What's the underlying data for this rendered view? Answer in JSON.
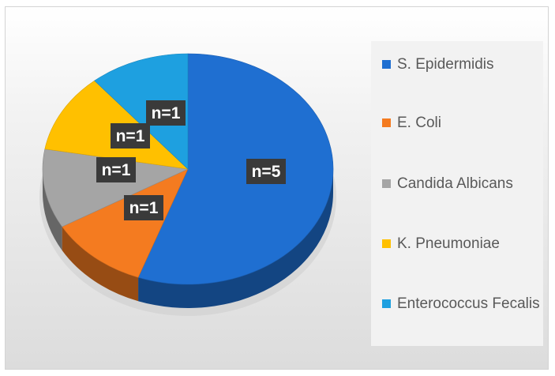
{
  "chart_data": {
    "type": "pie",
    "style": "3d",
    "categories": [
      "S. Epidermidis",
      "E. Coli",
      "Candida Albicans",
      "K. Pneumoniae",
      "Enterococcus Fecalis"
    ],
    "values": [
      5,
      1,
      1,
      1,
      1
    ],
    "data_labels": [
      "n=5",
      "n=1",
      "n=1",
      "n=1",
      "n=1"
    ],
    "colors": [
      "#1f6fd1",
      "#f47b20",
      "#a5a5a5",
      "#ffc000",
      "#1ea0e0"
    ],
    "legend_position": "right",
    "title": ""
  }
}
